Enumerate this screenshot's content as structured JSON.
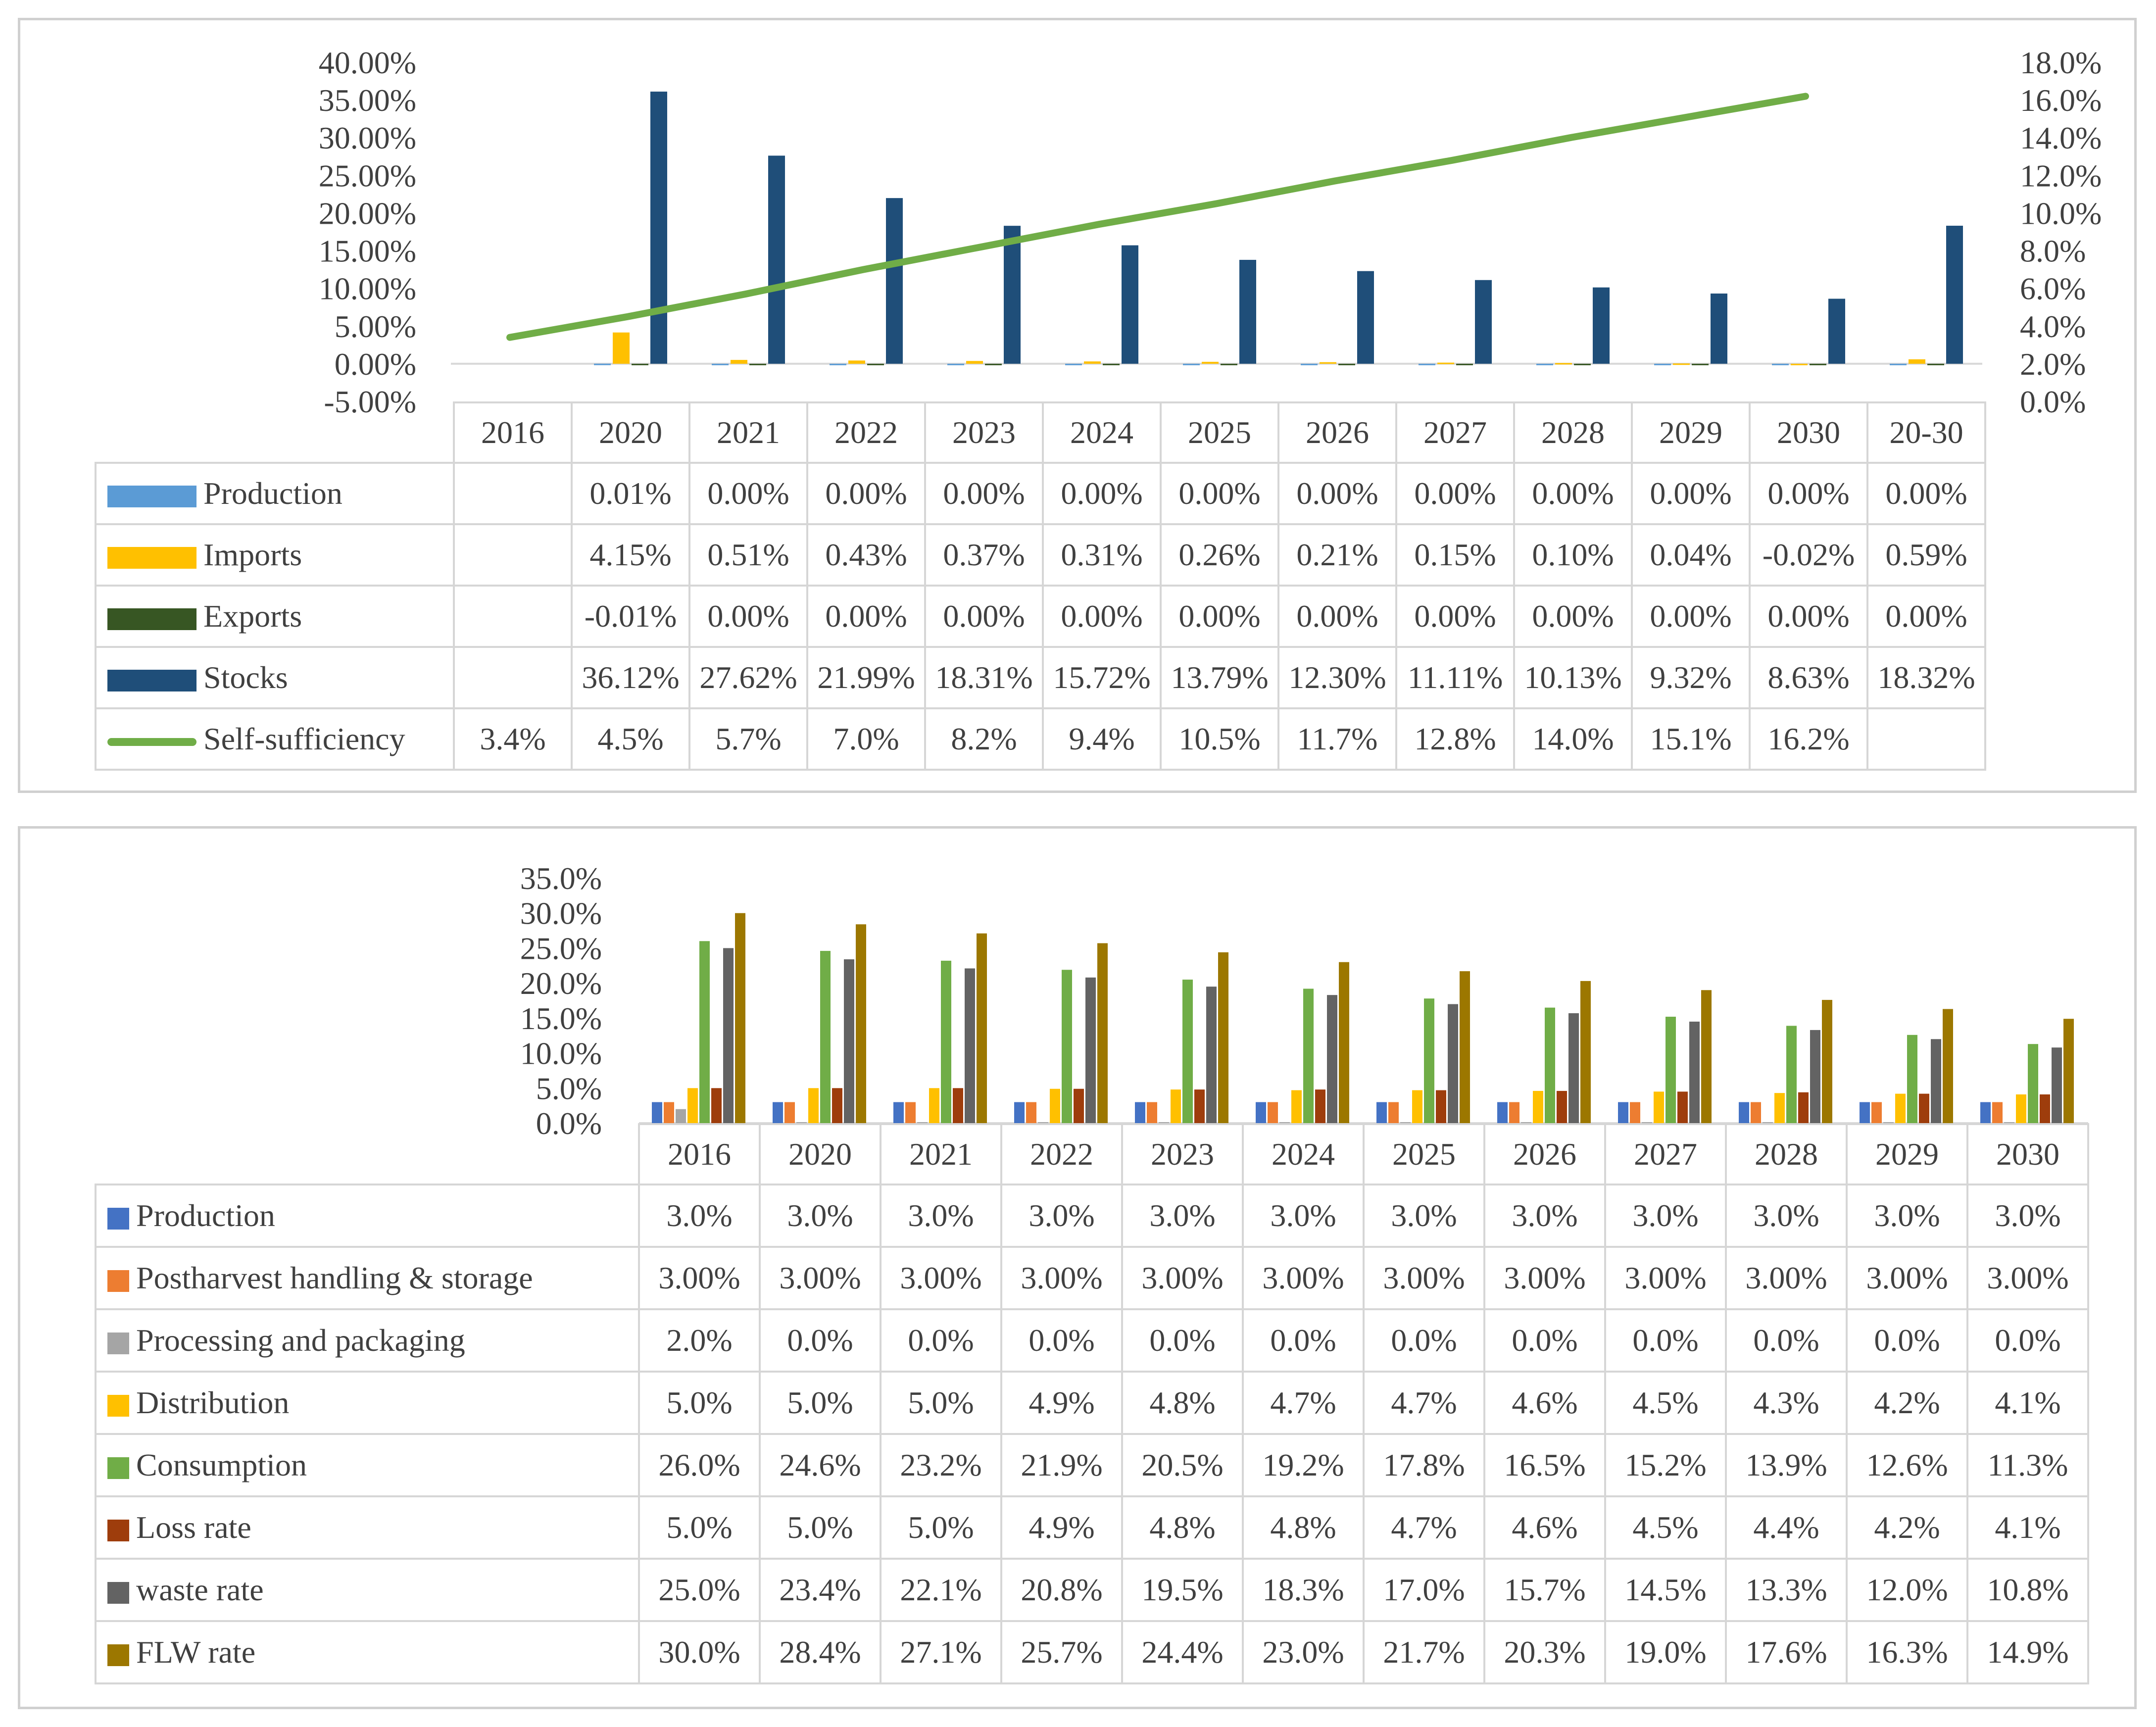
{
  "chart_data": [
    {
      "type": "bar",
      "title": "",
      "categories": [
        "2016",
        "2020",
        "2021",
        "2022",
        "2023",
        "2024",
        "2025",
        "2026",
        "2027",
        "2028",
        "2029",
        "2030",
        "20-30"
      ],
      "y_left": {
        "ticks": [
          "40.00%",
          "35.00%",
          "30.00%",
          "25.00%",
          "20.00%",
          "15.00%",
          "10.00%",
          "5.00%",
          "0.00%",
          "-5.00%"
        ],
        "ylim": [
          -5,
          40
        ]
      },
      "y_right": {
        "ticks": [
          "18.0%",
          "16.0%",
          "14.0%",
          "12.0%",
          "10.0%",
          "8.0%",
          "6.0%",
          "4.0%",
          "2.0%",
          "0.0%"
        ],
        "ylim": [
          0,
          18
        ]
      },
      "series": [
        {
          "name": "Production",
          "kind": "bar",
          "axis": "left",
          "color": "#5b9bd5",
          "values": [
            null,
            0.01,
            0.0,
            0.0,
            0.0,
            0.0,
            0.0,
            0.0,
            0.0,
            0.0,
            0.0,
            0.0,
            0.0
          ],
          "labels": [
            "",
            "0.01%",
            "0.00%",
            "0.00%",
            "0.00%",
            "0.00%",
            "0.00%",
            "0.00%",
            "0.00%",
            "0.00%",
            "0.00%",
            "0.00%",
            "0.00%"
          ]
        },
        {
          "name": "Imports",
          "kind": "bar",
          "axis": "left",
          "color": "#ffc000",
          "values": [
            null,
            4.15,
            0.51,
            0.43,
            0.37,
            0.31,
            0.26,
            0.21,
            0.15,
            0.1,
            0.04,
            -0.02,
            0.59
          ],
          "labels": [
            "",
            "4.15%",
            "0.51%",
            "0.43%",
            "0.37%",
            "0.31%",
            "0.26%",
            "0.21%",
            "0.15%",
            "0.10%",
            "0.04%",
            "-0.02%",
            "0.59%"
          ]
        },
        {
          "name": "Exports",
          "kind": "bar",
          "axis": "left",
          "color": "#375623",
          "values": [
            null,
            -0.01,
            0.0,
            0.0,
            0.0,
            0.0,
            0.0,
            0.0,
            0.0,
            0.0,
            0.0,
            0.0,
            0.0
          ],
          "labels": [
            "",
            "-0.01%",
            "0.00%",
            "0.00%",
            "0.00%",
            "0.00%",
            "0.00%",
            "0.00%",
            "0.00%",
            "0.00%",
            "0.00%",
            "0.00%",
            "0.00%"
          ]
        },
        {
          "name": "Stocks",
          "kind": "bar",
          "axis": "left",
          "color": "#1f4e79",
          "values": [
            null,
            36.12,
            27.62,
            21.99,
            18.31,
            15.72,
            13.79,
            12.3,
            11.11,
            10.13,
            9.32,
            8.63,
            18.32
          ],
          "labels": [
            "",
            "36.12%",
            "27.62%",
            "21.99%",
            "18.31%",
            "15.72%",
            "13.79%",
            "12.30%",
            "11.11%",
            "10.13%",
            "9.32%",
            "8.63%",
            "18.32%"
          ]
        },
        {
          "name": "Self-sufficiency",
          "kind": "line",
          "axis": "right",
          "color": "#70ad47",
          "values": [
            3.4,
            4.5,
            5.7,
            7.0,
            8.2,
            9.4,
            10.5,
            11.7,
            12.8,
            14.0,
            15.1,
            16.2,
            null
          ],
          "labels": [
            "3.4%",
            "4.5%",
            "5.7%",
            "7.0%",
            "8.2%",
            "9.4%",
            "10.5%",
            "11.7%",
            "12.8%",
            "14.0%",
            "15.1%",
            "16.2%",
            ""
          ]
        }
      ]
    },
    {
      "type": "bar",
      "title": "",
      "categories": [
        "2016",
        "2020",
        "2021",
        "2022",
        "2023",
        "2024",
        "2025",
        "2026",
        "2027",
        "2028",
        "2029",
        "2030"
      ],
      "y_left": {
        "ticks": [
          "35.0%",
          "30.0%",
          "25.0%",
          "20.0%",
          "15.0%",
          "10.0%",
          "5.0%",
          "0.0%"
        ],
        "ylim": [
          0,
          35
        ]
      },
      "series": [
        {
          "name": "Production",
          "color": "#4472c4",
          "values": [
            3.0,
            3.0,
            3.0,
            3.0,
            3.0,
            3.0,
            3.0,
            3.0,
            3.0,
            3.0,
            3.0,
            3.0
          ],
          "labels": [
            "3.0%",
            "3.0%",
            "3.0%",
            "3.0%",
            "3.0%",
            "3.0%",
            "3.0%",
            "3.0%",
            "3.0%",
            "3.0%",
            "3.0%",
            "3.0%"
          ]
        },
        {
          "name": "Postharvest handling & storage",
          "color": "#ed7d31",
          "values": [
            3.0,
            3.0,
            3.0,
            3.0,
            3.0,
            3.0,
            3.0,
            3.0,
            3.0,
            3.0,
            3.0,
            3.0
          ],
          "labels": [
            "3.00%",
            "3.00%",
            "3.00%",
            "3.00%",
            "3.00%",
            "3.00%",
            "3.00%",
            "3.00%",
            "3.00%",
            "3.00%",
            "3.00%",
            "3.00%"
          ]
        },
        {
          "name": "Processing and packaging",
          "color": "#a5a5a5",
          "values": [
            2.0,
            0.0,
            0.0,
            0.0,
            0.0,
            0.0,
            0.0,
            0.0,
            0.0,
            0.0,
            0.0,
            0.0
          ],
          "labels": [
            "2.0%",
            "0.0%",
            "0.0%",
            "0.0%",
            "0.0%",
            "0.0%",
            "0.0%",
            "0.0%",
            "0.0%",
            "0.0%",
            "0.0%",
            "0.0%"
          ]
        },
        {
          "name": "Distribution",
          "color": "#ffc000",
          "values": [
            5.0,
            5.0,
            5.0,
            4.9,
            4.8,
            4.7,
            4.7,
            4.6,
            4.5,
            4.3,
            4.2,
            4.1
          ],
          "labels": [
            "5.0%",
            "5.0%",
            "5.0%",
            "4.9%",
            "4.8%",
            "4.7%",
            "4.7%",
            "4.6%",
            "4.5%",
            "4.3%",
            "4.2%",
            "4.1%"
          ]
        },
        {
          "name": "Consumption",
          "color": "#70ad47",
          "values": [
            26.0,
            24.6,
            23.2,
            21.9,
            20.5,
            19.2,
            17.8,
            16.5,
            15.2,
            13.9,
            12.6,
            11.3
          ],
          "labels": [
            "26.0%",
            "24.6%",
            "23.2%",
            "21.9%",
            "20.5%",
            "19.2%",
            "17.8%",
            "16.5%",
            "15.2%",
            "13.9%",
            "12.6%",
            "11.3%"
          ]
        },
        {
          "name": "Loss rate",
          "color": "#9e3d0c",
          "values": [
            5.0,
            5.0,
            5.0,
            4.9,
            4.8,
            4.8,
            4.7,
            4.6,
            4.5,
            4.4,
            4.2,
            4.1
          ],
          "labels": [
            "5.0%",
            "5.0%",
            "5.0%",
            "4.9%",
            "4.8%",
            "4.8%",
            "4.7%",
            "4.6%",
            "4.5%",
            "4.4%",
            "4.2%",
            "4.1%"
          ]
        },
        {
          "name": "waste rate",
          "color": "#636363",
          "values": [
            25.0,
            23.4,
            22.1,
            20.8,
            19.5,
            18.3,
            17.0,
            15.7,
            14.5,
            13.3,
            12.0,
            10.8
          ],
          "labels": [
            "25.0%",
            "23.4%",
            "22.1%",
            "20.8%",
            "19.5%",
            "18.3%",
            "17.0%",
            "15.7%",
            "14.5%",
            "13.3%",
            "12.0%",
            "10.8%"
          ]
        },
        {
          "name": "FLW rate",
          "color": "#9c7700",
          "values": [
            30.0,
            28.4,
            27.1,
            25.7,
            24.4,
            23.0,
            21.7,
            20.3,
            19.0,
            17.6,
            16.3,
            14.9
          ],
          "labels": [
            "30.0%",
            "28.4%",
            "27.1%",
            "25.7%",
            "24.4%",
            "23.0%",
            "21.7%",
            "20.3%",
            "19.0%",
            "17.6%",
            "16.3%",
            "14.9%"
          ]
        }
      ]
    }
  ]
}
